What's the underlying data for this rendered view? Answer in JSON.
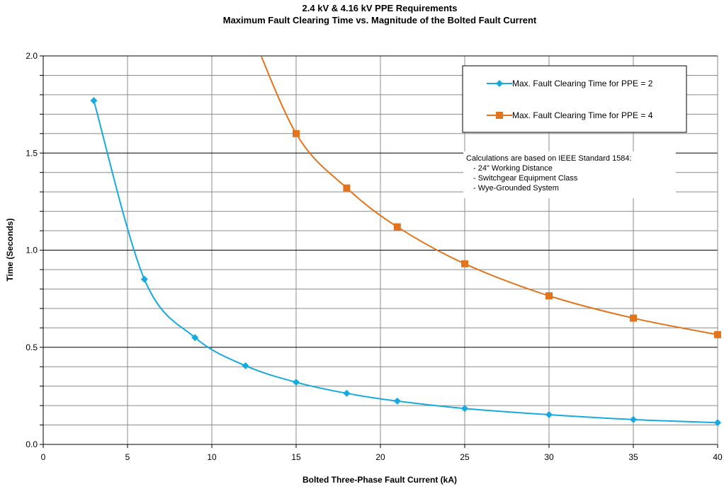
{
  "chart_data": {
    "type": "line",
    "title": "2.4 kV & 4.16 kV PPE Requirements",
    "subtitle": "Maximum Fault Clearing Time vs. Magnitude of the Bolted Fault Current",
    "xlabel": "Bolted Three-Phase Fault Current (kA)",
    "ylabel": "Time (Seconds)",
    "xlim": [
      0,
      40
    ],
    "ylim": [
      0,
      2.0
    ],
    "x_ticks": [
      "0",
      "5",
      "10",
      "15",
      "20",
      "25",
      "30",
      "35",
      "40"
    ],
    "y_ticks": [
      "0.0",
      "0.5",
      "1.0",
      "1.5",
      "2.0"
    ],
    "grid": true,
    "legend_position": "top-right",
    "series": [
      {
        "name": "Max. Fault Clearing Time for PPE = 2",
        "color": "#16aadf",
        "marker": "diamond",
        "x": [
          3,
          6,
          9,
          12,
          15,
          18,
          21,
          25,
          30,
          35,
          40
        ],
        "y": [
          1.77,
          0.85,
          0.55,
          0.405,
          0.32,
          0.263,
          0.223,
          0.185,
          0.153,
          0.128,
          0.112
        ]
      },
      {
        "name": "Max. Fault Clearing Time for PPE = 4",
        "color": "#e4741c",
        "marker": "square",
        "x": [
          15,
          18,
          21,
          25,
          30,
          35,
          40
        ],
        "y": [
          1.6,
          1.32,
          1.12,
          0.93,
          0.765,
          0.65,
          0.565
        ]
      }
    ],
    "curve_extension_ppe4": {
      "x": 12,
      "y": 2.2
    },
    "annotation": {
      "lines": [
        "Calculations are based on IEEE Standard 1584:",
        "- 24\" Working Distance",
        "- Switchgear Equipment Class",
        "- Wye-Grounded System"
      ]
    }
  }
}
